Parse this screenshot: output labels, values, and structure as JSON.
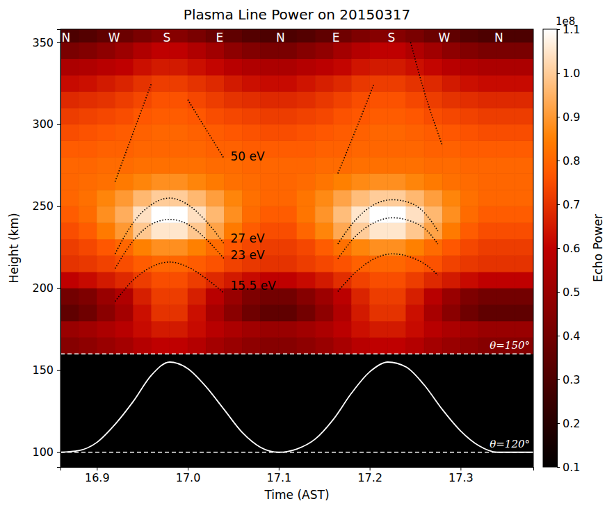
{
  "chart_data": {
    "type": "heatmap",
    "title": "Plasma Line Power on 20150317",
    "x_label": "Time (AST)",
    "y_label": "Height (km)",
    "xlim": [
      16.86,
      17.38
    ],
    "ylim": [
      91,
      358
    ],
    "xticks": [
      16.9,
      {
        "value": 17,
        "label": "17.0"
      },
      17.1,
      17.2,
      17.3
    ],
    "yticks": [
      100,
      150,
      200,
      250,
      300,
      350
    ],
    "grid": false,
    "x_edges": [
      16.86,
      16.88,
      16.9,
      16.92,
      16.94,
      16.96,
      16.98,
      17.0,
      17.02,
      17.04,
      17.06,
      17.08,
      17.1,
      17.12,
      17.14,
      17.16,
      17.18,
      17.2,
      17.22,
      17.24,
      17.26,
      17.28,
      17.3,
      17.32,
      17.34,
      17.36,
      17.38
    ],
    "y_edges": [
      160,
      170,
      180,
      190,
      200,
      210,
      220,
      230,
      240,
      250,
      260,
      270,
      280,
      290,
      300,
      310,
      320,
      330,
      340,
      350,
      360
    ],
    "cells": [
      [
        0.45,
        0.47,
        0.5,
        0.53,
        0.57,
        0.6,
        0.6,
        0.57,
        0.53,
        0.5,
        0.47,
        0.45,
        0.45,
        0.47,
        0.5,
        0.54,
        0.58,
        0.6,
        0.6,
        0.57,
        0.53,
        0.5,
        0.47,
        0.45,
        0.45,
        0.45
      ],
      [
        0.5,
        0.52,
        0.55,
        0.58,
        0.62,
        0.65,
        0.65,
        0.62,
        0.58,
        0.55,
        0.52,
        0.5,
        0.5,
        0.52,
        0.55,
        0.59,
        0.63,
        0.65,
        0.65,
        0.62,
        0.58,
        0.55,
        0.52,
        0.5,
        0.5,
        0.5
      ],
      [
        0.35,
        0.39,
        0.46,
        0.53,
        0.63,
        0.7,
        0.7,
        0.63,
        0.54,
        0.46,
        0.39,
        0.35,
        0.35,
        0.4,
        0.47,
        0.56,
        0.65,
        0.7,
        0.7,
        0.63,
        0.54,
        0.46,
        0.39,
        0.35,
        0.35,
        0.35
      ],
      [
        0.4,
        0.43,
        0.5,
        0.56,
        0.66,
        0.72,
        0.72,
        0.66,
        0.58,
        0.5,
        0.43,
        0.4,
        0.4,
        0.45,
        0.51,
        0.59,
        0.67,
        0.72,
        0.72,
        0.66,
        0.58,
        0.5,
        0.43,
        0.4,
        0.4,
        0.4
      ],
      [
        0.6,
        0.62,
        0.65,
        0.68,
        0.72,
        0.75,
        0.75,
        0.72,
        0.68,
        0.65,
        0.62,
        0.6,
        0.6,
        0.62,
        0.65,
        0.69,
        0.73,
        0.75,
        0.75,
        0.72,
        0.68,
        0.65,
        0.62,
        0.6,
        0.6,
        0.6
      ],
      [
        0.7,
        0.71,
        0.73,
        0.75,
        0.78,
        0.8,
        0.8,
        0.78,
        0.76,
        0.73,
        0.71,
        0.7,
        0.7,
        0.72,
        0.74,
        0.76,
        0.79,
        0.8,
        0.8,
        0.78,
        0.76,
        0.73,
        0.71,
        0.7,
        0.7,
        0.7
      ],
      [
        0.72,
        0.74,
        0.77,
        0.8,
        0.85,
        0.88,
        0.88,
        0.85,
        0.81,
        0.77,
        0.74,
        0.72,
        0.72,
        0.74,
        0.78,
        0.82,
        0.86,
        0.88,
        0.88,
        0.85,
        0.81,
        0.77,
        0.74,
        0.72,
        0.72,
        0.72
      ],
      [
        0.75,
        0.78,
        0.84,
        0.9,
        0.99,
        1.05,
        1.05,
        0.99,
        0.92,
        0.84,
        0.78,
        0.75,
        0.75,
        0.8,
        0.86,
        0.93,
        1.0,
        1.05,
        1.05,
        0.99,
        0.92,
        0.84,
        0.78,
        0.75,
        0.75,
        0.75
      ],
      [
        0.78,
        0.81,
        0.88,
        0.94,
        1.04,
        1.1,
        1.1,
        1.04,
        0.96,
        0.88,
        0.81,
        0.78,
        0.78,
        0.83,
        0.89,
        0.97,
        1.05,
        1.1,
        1.1,
        1.04,
        0.96,
        0.88,
        0.81,
        0.78,
        0.78,
        0.78
      ],
      [
        0.8,
        0.82,
        0.86,
        0.9,
        0.96,
        1.0,
        1.0,
        0.96,
        0.91,
        0.86,
        0.82,
        0.8,
        0.8,
        0.83,
        0.87,
        0.92,
        0.97,
        1.0,
        1.0,
        0.96,
        0.91,
        0.86,
        0.82,
        0.8,
        0.8,
        0.8
      ],
      [
        0.8,
        0.81,
        0.82,
        0.84,
        0.86,
        0.88,
        0.88,
        0.86,
        0.84,
        0.82,
        0.81,
        0.8,
        0.8,
        0.81,
        0.83,
        0.85,
        0.87,
        0.88,
        0.88,
        0.86,
        0.84,
        0.82,
        0.81,
        0.8,
        0.8,
        0.8
      ],
      [
        0.8,
        0.8,
        0.81,
        0.81,
        0.82,
        0.82,
        0.82,
        0.82,
        0.81,
        0.81,
        0.8,
        0.8,
        0.8,
        0.8,
        0.81,
        0.81,
        0.82,
        0.82,
        0.82,
        0.82,
        0.81,
        0.81,
        0.8,
        0.8,
        0.8,
        0.8
      ],
      [
        0.78,
        0.78,
        0.79,
        0.79,
        0.8,
        0.8,
        0.8,
        0.8,
        0.79,
        0.79,
        0.78,
        0.78,
        0.78,
        0.78,
        0.79,
        0.79,
        0.8,
        0.8,
        0.8,
        0.8,
        0.79,
        0.79,
        0.78,
        0.78,
        0.78,
        0.78
      ],
      [
        0.75,
        0.76,
        0.77,
        0.78,
        0.79,
        0.8,
        0.8,
        0.79,
        0.78,
        0.77,
        0.76,
        0.75,
        0.75,
        0.76,
        0.77,
        0.78,
        0.79,
        0.8,
        0.8,
        0.79,
        0.78,
        0.77,
        0.76,
        0.75,
        0.75,
        0.75
      ],
      [
        0.72,
        0.73,
        0.74,
        0.75,
        0.77,
        0.78,
        0.78,
        0.77,
        0.75,
        0.74,
        0.73,
        0.72,
        0.72,
        0.73,
        0.74,
        0.76,
        0.77,
        0.78,
        0.78,
        0.77,
        0.75,
        0.74,
        0.73,
        0.72,
        0.72,
        0.72
      ],
      [
        0.68,
        0.69,
        0.7,
        0.72,
        0.74,
        0.76,
        0.76,
        0.74,
        0.72,
        0.7,
        0.69,
        0.68,
        0.68,
        0.69,
        0.71,
        0.73,
        0.75,
        0.76,
        0.76,
        0.74,
        0.72,
        0.7,
        0.69,
        0.68,
        0.68,
        0.68
      ],
      [
        0.62,
        0.63,
        0.65,
        0.67,
        0.7,
        0.72,
        0.72,
        0.7,
        0.68,
        0.65,
        0.63,
        0.62,
        0.62,
        0.64,
        0.66,
        0.68,
        0.71,
        0.72,
        0.72,
        0.7,
        0.68,
        0.65,
        0.63,
        0.62,
        0.62,
        0.62
      ],
      [
        0.55,
        0.56,
        0.58,
        0.6,
        0.63,
        0.65,
        0.65,
        0.63,
        0.61,
        0.58,
        0.56,
        0.55,
        0.55,
        0.57,
        0.59,
        0.61,
        0.64,
        0.65,
        0.65,
        0.63,
        0.61,
        0.58,
        0.56,
        0.55,
        0.55,
        0.55
      ],
      [
        0.42,
        0.44,
        0.47,
        0.51,
        0.56,
        0.6,
        0.6,
        0.56,
        0.52,
        0.47,
        0.44,
        0.42,
        0.42,
        0.45,
        0.48,
        0.53,
        0.57,
        0.6,
        0.6,
        0.56,
        0.52,
        0.47,
        0.44,
        0.42,
        0.42,
        0.42
      ],
      [
        0.3,
        0.32,
        0.35,
        0.38,
        0.42,
        0.45,
        0.45,
        0.42,
        0.38,
        0.35,
        0.32,
        0.3,
        0.3,
        0.32,
        0.35,
        0.39,
        0.43,
        0.45,
        0.45,
        0.42,
        0.38,
        0.35,
        0.32,
        0.3,
        0.3,
        0.3
      ]
    ],
    "colorbar": {
      "range": [
        0.1,
        1.1
      ],
      "ticks": [
        0.1,
        0.2,
        0.3,
        0.4,
        0.5,
        0.6,
        0.7,
        0.8,
        0.9,
        {
          "value": 1,
          "label": "1.0"
        },
        1.1
      ],
      "label": "Echo Power",
      "offset_label": "1e8"
    },
    "series": [
      {
        "type": "line",
        "color": "#000000",
        "line_style": "dotted",
        "x": [
          16.92,
          16.94,
          16.96,
          16.98,
          17.0,
          17.02,
          17.04,
          17.1,
          17.165,
          17.185,
          17.205,
          17.225,
          17.245,
          17.26,
          17.28
        ],
        "values": [
          265,
          295,
          325,
          null,
          315,
          297,
          279,
          null,
          270,
          297,
          325,
          null,
          350,
          320,
          287
        ]
      },
      {
        "type": "line",
        "color": "#000000",
        "line_style": "dotted",
        "x": [
          16.92,
          16.94,
          16.96,
          16.98,
          17.0,
          17.02,
          17.04,
          17.1,
          17.165,
          17.185,
          17.205,
          17.225,
          17.245,
          17.265,
          17.275
        ],
        "values": [
          221,
          240,
          251,
          255,
          251,
          241,
          227,
          null,
          227,
          242,
          251,
          254,
          252,
          243,
          235
        ]
      },
      {
        "type": "line",
        "color": "#000000",
        "line_style": "dotted",
        "x": [
          16.92,
          16.94,
          16.96,
          16.98,
          17.0,
          17.02,
          17.04,
          17.1,
          17.165,
          17.185,
          17.205,
          17.225,
          17.245,
          17.265,
          17.275
        ],
        "values": [
          212,
          229,
          239,
          242,
          239,
          230,
          218,
          null,
          218,
          232,
          240,
          243,
          241,
          234,
          227
        ]
      },
      {
        "type": "line",
        "color": "#000000",
        "line_style": "dotted",
        "x": [
          16.92,
          16.94,
          16.96,
          16.98,
          17.0,
          17.02,
          17.04,
          17.1,
          17.165,
          17.185,
          17.205,
          17.225,
          17.245,
          17.265,
          17.275
        ],
        "values": [
          192,
          205,
          213,
          216,
          213,
          206,
          197,
          null,
          198,
          210,
          218,
          221,
          219,
          213,
          208
        ]
      },
      {
        "type": "line",
        "color": "#ffffff",
        "line_style": "solid",
        "x": [
          16.86,
          16.88,
          16.9,
          16.92,
          16.94,
          16.96,
          16.98,
          17.0,
          17.02,
          17.04,
          17.06,
          17.08,
          17.1,
          17.12,
          17.14,
          17.16,
          17.18,
          17.2,
          17.22,
          17.24,
          17.26,
          17.28,
          17.3,
          17.32,
          17.34,
          17.36,
          17.38
        ],
        "values": [
          100,
          101,
          106,
          117,
          131,
          147,
          155,
          151,
          140,
          126,
          112,
          103,
          100,
          102,
          108,
          120,
          136,
          149,
          155,
          152,
          141,
          126,
          113,
          104,
          100,
          100,
          100
        ]
      }
    ],
    "annotations": [
      {
        "text": "50 eV",
        "x": 17.047,
        "y": 280
      },
      {
        "text": "27 eV",
        "x": 17.047,
        "y": 230
      },
      {
        "text": "23 eV",
        "x": 17.047,
        "y": 220
      },
      {
        "text": "15.5 eV",
        "x": 17.047,
        "y": 201
      }
    ],
    "reference_lines": [
      {
        "y": 160,
        "label": "θ=150°"
      },
      {
        "y": 100,
        "label": "θ=120°"
      }
    ],
    "azimuth_labels": [
      {
        "x": 16.866,
        "label": "N"
      },
      {
        "x": 16.919,
        "label": "W"
      },
      {
        "x": 16.977,
        "label": "S"
      },
      {
        "x": 17.035,
        "label": "E"
      },
      {
        "x": 17.102,
        "label": "N"
      },
      {
        "x": 17.163,
        "label": "E"
      },
      {
        "x": 17.224,
        "label": "S"
      },
      {
        "x": 17.282,
        "label": "W"
      },
      {
        "x": 17.342,
        "label": "N"
      }
    ]
  }
}
